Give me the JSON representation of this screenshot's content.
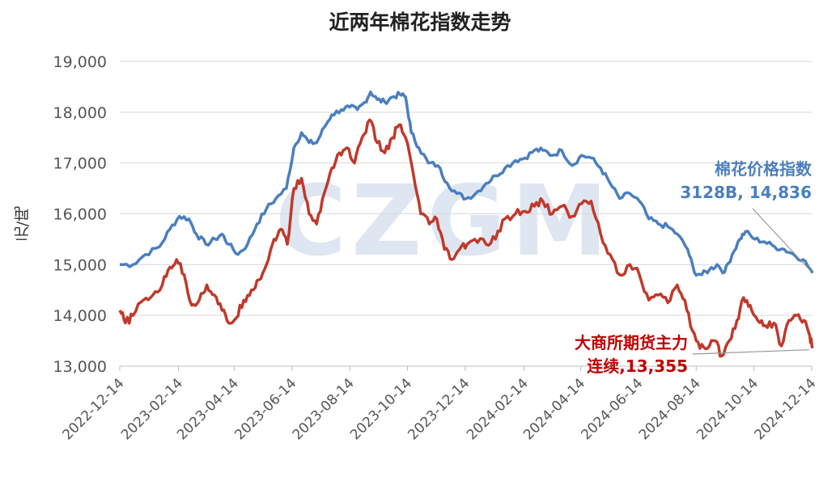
{
  "chart_data": {
    "type": "line",
    "title": "近两年棉花指数走势",
    "ylabel": "元/吨",
    "xlabel": "",
    "ylim": [
      13000,
      19000
    ],
    "yticks": [
      "13,000",
      "14,000",
      "15,000",
      "16,000",
      "17,000",
      "18,000",
      "19,000"
    ],
    "xticks": [
      "2022-12-14",
      "2023-02-14",
      "2023-04-14",
      "2023-06-14",
      "2023-08-14",
      "2023-10-14",
      "2023-12-14",
      "2024-02-14",
      "2024-04-14",
      "2024-06-14",
      "2024-08-14",
      "2024-10-14",
      "2024-12-14"
    ],
    "grid": "horizontal",
    "watermark": "CZGM",
    "series": [
      {
        "name": "棉花价格指数",
        "color": "#4a7fbf",
        "annotation_line1": "棉花价格指数",
        "annotation_line2": "3128B, 14,836",
        "points": [
          [
            "2022-12-14",
            15000
          ],
          [
            "2022-12-28",
            15000
          ],
          [
            "2023-01-10",
            15200
          ],
          [
            "2023-01-25",
            15350
          ],
          [
            "2023-02-05",
            15700
          ],
          [
            "2023-02-15",
            15950
          ],
          [
            "2023-02-25",
            15900
          ],
          [
            "2023-03-05",
            15600
          ],
          [
            "2023-03-15",
            15400
          ],
          [
            "2023-03-25",
            15500
          ],
          [
            "2023-04-01",
            15600
          ],
          [
            "2023-04-08",
            15400
          ],
          [
            "2023-04-18",
            15200
          ],
          [
            "2023-04-28",
            15400
          ],
          [
            "2023-05-08",
            15800
          ],
          [
            "2023-05-18",
            16100
          ],
          [
            "2023-05-28",
            16300
          ],
          [
            "2023-06-08",
            16500
          ],
          [
            "2023-06-16",
            17300
          ],
          [
            "2023-06-24",
            17600
          ],
          [
            "2023-07-02",
            17400
          ],
          [
            "2023-07-10",
            17400
          ],
          [
            "2023-07-18",
            17700
          ],
          [
            "2023-07-26",
            17950
          ],
          [
            "2023-08-05",
            18050
          ],
          [
            "2023-08-14",
            18100
          ],
          [
            "2023-08-22",
            18050
          ],
          [
            "2023-08-30",
            18200
          ],
          [
            "2023-09-05",
            18400
          ],
          [
            "2023-09-12",
            18250
          ],
          [
            "2023-09-20",
            18200
          ],
          [
            "2023-09-28",
            18300
          ],
          [
            "2023-10-06",
            18350
          ],
          [
            "2023-10-12",
            18300
          ],
          [
            "2023-10-18",
            17600
          ],
          [
            "2023-10-26",
            17300
          ],
          [
            "2023-11-05",
            17000
          ],
          [
            "2023-11-15",
            16950
          ],
          [
            "2023-11-25",
            16600
          ],
          [
            "2023-12-05",
            16400
          ],
          [
            "2023-12-15",
            16300
          ],
          [
            "2023-12-25",
            16400
          ],
          [
            "2024-01-05",
            16600
          ],
          [
            "2024-01-15",
            16750
          ],
          [
            "2024-01-25",
            16900
          ],
          [
            "2024-02-05",
            17050
          ],
          [
            "2024-02-15",
            17100
          ],
          [
            "2024-02-25",
            17250
          ],
          [
            "2024-03-05",
            17250
          ],
          [
            "2024-03-15",
            17150
          ],
          [
            "2024-03-25",
            17250
          ],
          [
            "2024-04-05",
            16950
          ],
          [
            "2024-04-15",
            17150
          ],
          [
            "2024-04-25",
            17100
          ],
          [
            "2024-05-05",
            16900
          ],
          [
            "2024-05-15",
            16600
          ],
          [
            "2024-05-25",
            16300
          ],
          [
            "2024-06-05",
            16400
          ],
          [
            "2024-06-15",
            16250
          ],
          [
            "2024-06-25",
            15900
          ],
          [
            "2024-07-05",
            15800
          ],
          [
            "2024-07-15",
            15750
          ],
          [
            "2024-07-25",
            15600
          ],
          [
            "2024-08-05",
            15300
          ],
          [
            "2024-08-12",
            14850
          ],
          [
            "2024-08-20",
            14800
          ],
          [
            "2024-08-28",
            14900
          ],
          [
            "2024-09-05",
            15000
          ],
          [
            "2024-09-13",
            14850
          ],
          [
            "2024-09-21",
            15200
          ],
          [
            "2024-09-29",
            15500
          ],
          [
            "2024-10-05",
            15650
          ],
          [
            "2024-10-15",
            15500
          ],
          [
            "2024-10-25",
            15450
          ],
          [
            "2024-11-05",
            15350
          ],
          [
            "2024-11-15",
            15300
          ],
          [
            "2024-11-25",
            15200
          ],
          [
            "2024-12-05",
            15100
          ],
          [
            "2024-12-15",
            14836
          ]
        ]
      },
      {
        "name": "大商所期货主力连续",
        "color": "#c0392b",
        "annotation_line1": "大商所期货主力",
        "annotation_line2": "连续,13,355",
        "points": [
          [
            "2022-12-14",
            14100
          ],
          [
            "2022-12-20",
            13850
          ],
          [
            "2022-12-28",
            14000
          ],
          [
            "2023-01-08",
            14300
          ],
          [
            "2023-01-18",
            14400
          ],
          [
            "2023-01-28",
            14600
          ],
          [
            "2023-02-05",
            14950
          ],
          [
            "2023-02-12",
            15100
          ],
          [
            "2023-02-20",
            14800
          ],
          [
            "2023-02-28",
            14200
          ],
          [
            "2023-03-08",
            14300
          ],
          [
            "2023-03-16",
            14600
          ],
          [
            "2023-03-24",
            14400
          ],
          [
            "2023-04-01",
            14100
          ],
          [
            "2023-04-08",
            13850
          ],
          [
            "2023-04-16",
            13950
          ],
          [
            "2023-04-24",
            14300
          ],
          [
            "2023-05-02",
            14500
          ],
          [
            "2023-05-10",
            14700
          ],
          [
            "2023-05-18",
            15000
          ],
          [
            "2023-05-26",
            15500
          ],
          [
            "2023-06-02",
            15700
          ],
          [
            "2023-06-09",
            15400
          ],
          [
            "2023-06-16",
            16500
          ],
          [
            "2023-06-24",
            16700
          ],
          [
            "2023-07-02",
            16000
          ],
          [
            "2023-07-10",
            15800
          ],
          [
            "2023-07-18",
            16400
          ],
          [
            "2023-07-26",
            16900
          ],
          [
            "2023-08-03",
            17200
          ],
          [
            "2023-08-11",
            17300
          ],
          [
            "2023-08-19",
            17000
          ],
          [
            "2023-08-27",
            17500
          ],
          [
            "2023-09-04",
            17850
          ],
          [
            "2023-09-12",
            17400
          ],
          [
            "2023-09-20",
            17200
          ],
          [
            "2023-09-28",
            17500
          ],
          [
            "2023-10-05",
            17750
          ],
          [
            "2023-10-12",
            17500
          ],
          [
            "2023-10-20",
            16800
          ],
          [
            "2023-10-28",
            16000
          ],
          [
            "2023-11-06",
            15800
          ],
          [
            "2023-11-14",
            15900
          ],
          [
            "2023-11-22",
            15300
          ],
          [
            "2023-11-30",
            15100
          ],
          [
            "2023-12-08",
            15300
          ],
          [
            "2023-12-16",
            15400
          ],
          [
            "2023-12-24",
            15500
          ],
          [
            "2024-01-05",
            15400
          ],
          [
            "2024-01-15",
            15500
          ],
          [
            "2024-01-25",
            15900
          ],
          [
            "2024-02-05",
            16000
          ],
          [
            "2024-02-15",
            16050
          ],
          [
            "2024-02-25",
            16150
          ],
          [
            "2024-03-05",
            16250
          ],
          [
            "2024-03-15",
            16000
          ],
          [
            "2024-03-25",
            16150
          ],
          [
            "2024-04-05",
            15950
          ],
          [
            "2024-04-15",
            16200
          ],
          [
            "2024-04-25",
            16250
          ],
          [
            "2024-05-05",
            15600
          ],
          [
            "2024-05-15",
            15200
          ],
          [
            "2024-05-25",
            14800
          ],
          [
            "2024-06-05",
            15000
          ],
          [
            "2024-06-15",
            14800
          ],
          [
            "2024-06-25",
            14300
          ],
          [
            "2024-07-05",
            14400
          ],
          [
            "2024-07-15",
            14250
          ],
          [
            "2024-07-25",
            14600
          ],
          [
            "2024-08-02",
            14300
          ],
          [
            "2024-08-10",
            13700
          ],
          [
            "2024-08-18",
            13350
          ],
          [
            "2024-08-26",
            13350
          ],
          [
            "2024-09-03",
            13500
          ],
          [
            "2024-09-10",
            13200
          ],
          [
            "2024-09-18",
            13500
          ],
          [
            "2024-09-26",
            13900
          ],
          [
            "2024-10-03",
            14350
          ],
          [
            "2024-10-10",
            14200
          ],
          [
            "2024-10-18",
            13900
          ],
          [
            "2024-10-26",
            13800
          ],
          [
            "2024-11-04",
            13850
          ],
          [
            "2024-11-12",
            13400
          ],
          [
            "2024-11-20",
            13900
          ],
          [
            "2024-11-28",
            14000
          ],
          [
            "2024-12-06",
            13900
          ],
          [
            "2024-12-12",
            13600
          ],
          [
            "2024-12-15",
            13355
          ]
        ]
      }
    ]
  }
}
